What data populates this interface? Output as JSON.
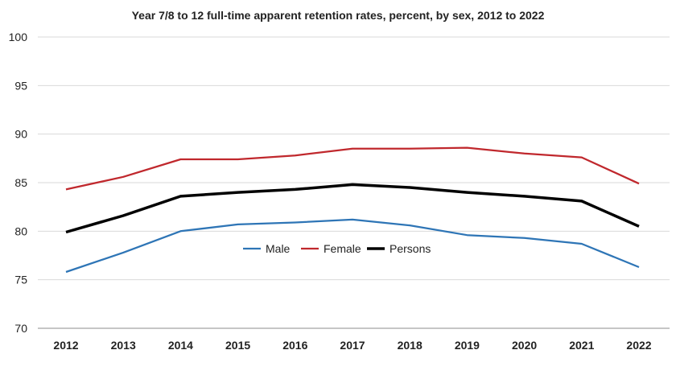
{
  "chart_data": {
    "type": "line",
    "title": "Year 7/8 to 12 full-time apparent retention rates, percent, by sex, 2012 to 2022",
    "xlabel": "",
    "ylabel": "",
    "ylim": [
      70,
      100
    ],
    "yticks": [
      "70",
      "75",
      "80",
      "85",
      "90",
      "95",
      "100"
    ],
    "grid": true,
    "legend_position": "center",
    "categories": [
      "2012",
      "2013",
      "2014",
      "2015",
      "2016",
      "2017",
      "2018",
      "2019",
      "2020",
      "2021",
      "2022"
    ],
    "series": [
      {
        "name": "Male",
        "color": "#2e75b6",
        "values": [
          75.8,
          77.8,
          80.0,
          80.7,
          80.9,
          81.2,
          80.6,
          79.6,
          79.3,
          78.7,
          76.3
        ]
      },
      {
        "name": "Female",
        "color": "#c0282d",
        "values": [
          84.3,
          85.6,
          87.4,
          87.4,
          87.8,
          88.5,
          88.5,
          88.6,
          88.0,
          87.6,
          84.9
        ]
      },
      {
        "name": "Persons",
        "color": "#000000",
        "values": [
          79.9,
          81.6,
          83.6,
          84.0,
          84.3,
          84.8,
          84.5,
          84.0,
          83.6,
          83.1,
          80.5
        ]
      }
    ]
  }
}
